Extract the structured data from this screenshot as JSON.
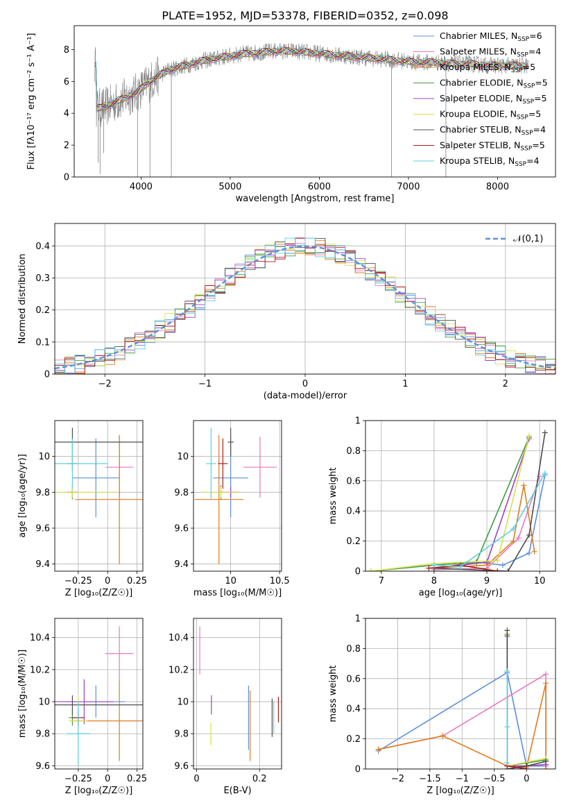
{
  "figure_title": "PLATE=1952, MJD=53378, FIBERID=0352, z=0.098",
  "colors": {
    "Chabrier MILES": "#5b8fd9",
    "Salpeter MILES": "#e879c0",
    "Kroupa MILES": "#e07b1a",
    "Chabrier ELODIE": "#3f9b3f",
    "Salpeter ELODIE": "#a13fbf",
    "Kroupa ELODIE": "#d6e04a",
    "Chabrier STELIB": "#4d4d4d",
    "Salpeter STELIB": "#b01818",
    "Kroupa STELIB": "#5ecfe0",
    "data": "#808080",
    "normal": "#5b8fd9"
  },
  "chart_data": [
    {
      "id": "spectrum",
      "type": "line",
      "xlabel": "wavelength [Angstrom, rest frame]",
      "ylabel": "Flux [fλ10⁻¹⁷ erg cm⁻² s⁻¹ A⁻¹]",
      "xlim": [
        3250,
        8650
      ],
      "ylim": [
        0,
        9.5
      ],
      "xticks": [
        4000,
        5000,
        6000,
        7000,
        8000
      ],
      "yticks": [
        0,
        2,
        4,
        6,
        8
      ],
      "grid": false,
      "legend_position": "right",
      "legend": [
        {
          "model": "Chabrier MILES",
          "label": "Chabrier MILES, N",
          "nssp": "6"
        },
        {
          "model": "Salpeter MILES",
          "label": "Salpeter MILES, N",
          "nssp": "4"
        },
        {
          "model": "Kroupa MILES",
          "label": "Kroupa MILES, N",
          "nssp": "5"
        },
        {
          "model": "Chabrier ELODIE",
          "label": "Chabrier ELODIE, N",
          "nssp": "5"
        },
        {
          "model": "Salpeter ELODIE",
          "label": "Salpeter ELODIE, N",
          "nssp": "5"
        },
        {
          "model": "Kroupa ELODIE",
          "label": "Kroupa ELODIE, N",
          "nssp": "5"
        },
        {
          "model": "Chabrier STELIB",
          "label": "Chabrier STELIB, N",
          "nssp": "4"
        },
        {
          "model": "Salpeter STELIB",
          "label": "Salpeter STELIB, N",
          "nssp": "5"
        },
        {
          "model": "Kroupa STELIB",
          "label": "Kroupa STELIB, N",
          "nssp": "4"
        }
      ],
      "subscript": "SSP",
      "continuum": [
        [
          3500,
          4.3
        ],
        [
          3600,
          4.4
        ],
        [
          3750,
          4.8
        ],
        [
          3950,
          5.3
        ],
        [
          4100,
          6.0
        ],
        [
          4300,
          6.7
        ],
        [
          4500,
          7.0
        ],
        [
          4700,
          7.3
        ],
        [
          4900,
          7.5
        ],
        [
          5100,
          7.7
        ],
        [
          5300,
          7.8
        ],
        [
          5500,
          7.9
        ],
        [
          5700,
          7.9
        ],
        [
          5900,
          7.8
        ],
        [
          6100,
          7.7
        ],
        [
          6300,
          7.6
        ],
        [
          6500,
          7.5
        ],
        [
          6700,
          7.4
        ],
        [
          6900,
          7.3
        ],
        [
          7100,
          7.2
        ],
        [
          7300,
          7.2
        ],
        [
          7500,
          7.1
        ],
        [
          7700,
          7.1
        ],
        [
          7900,
          7.0
        ],
        [
          8100,
          7.0
        ],
        [
          8350,
          7.0
        ]
      ],
      "spikes": [
        [
          3520,
          0.9
        ],
        [
          3540,
          0.2
        ],
        [
          3580,
          1.5
        ],
        [
          3960,
          0
        ],
        [
          4100,
          0
        ],
        [
          4340,
          0
        ],
        [
          6810,
          0
        ],
        [
          7420,
          0
        ]
      ]
    },
    {
      "id": "residuals",
      "type": "line",
      "xlabel": "(data-model)/error",
      "ylabel": "Normed distribution",
      "xlim": [
        -2.5,
        2.5
      ],
      "ylim": [
        0,
        0.47
      ],
      "xticks": [
        -2,
        -1,
        0,
        1,
        2
      ],
      "yticks": [
        0.0,
        0.1,
        0.2,
        0.3,
        0.4
      ],
      "grid": true,
      "legend_position": "top-right",
      "legend_label": "𝒩(0,1)",
      "bin_width": 0.1
    },
    {
      "id": "age_vs_Z",
      "type": "scatter",
      "xlabel": "Z [log₁₀(Z/Z☉)]",
      "ylabel": "age  [log₁₀(age/yr)]",
      "xlim": [
        -0.45,
        0.3
      ],
      "ylim": [
        9.36,
        10.2
      ],
      "xticks": [
        -0.25,
        0.0,
        0.25
      ],
      "yticks": [
        9.4,
        9.6,
        9.8,
        10.0
      ],
      "grid": true,
      "points": [
        {
          "model": "Chabrier MILES",
          "x": -0.1,
          "y": 9.88,
          "xerr": 0.2,
          "yerr": 0.22
        },
        {
          "model": "Salpeter MILES",
          "x": 0.1,
          "y": 9.94,
          "xerr": 0.12,
          "yerr": 0.17
        },
        {
          "model": "Kroupa MILES",
          "x": 0.1,
          "y": 9.76,
          "xerr": 0.38,
          "yerr": 0.36
        },
        {
          "model": "Chabrier ELODIE",
          "x": -0.3,
          "y": 9.8,
          "xerr": 0.03,
          "yerr": 0.04
        },
        {
          "model": "Salpeter ELODIE",
          "x": -0.3,
          "y": 9.8,
          "xerr": 0.05,
          "yerr": 0.03
        },
        {
          "model": "Kroupa ELODIE",
          "x": -0.3,
          "y": 9.8,
          "xerr": 0.38,
          "yerr": 0.03
        },
        {
          "model": "Chabrier STELIB",
          "x": -0.3,
          "y": 10.08,
          "xerr": 0.62,
          "yerr": 0.08
        },
        {
          "model": "Salpeter STELIB",
          "x": -0.3,
          "y": 9.96,
          "xerr": 0.04,
          "yerr": 0.04
        },
        {
          "model": "Kroupa STELIB",
          "x": -0.3,
          "y": 9.96,
          "xerr": 0.3,
          "yerr": 0.14
        }
      ]
    },
    {
      "id": "age_vs_mass",
      "type": "scatter",
      "xlabel": "mass [log₁₀(M/M☉)]",
      "ylabel": "",
      "xlim": [
        9.62,
        10.52
      ],
      "ylim": [
        9.36,
        10.2
      ],
      "xticks": [
        10.0,
        10.5
      ],
      "yticks": [
        9.4,
        9.6,
        9.8,
        10.0
      ],
      "grid": true,
      "points": [
        {
          "model": "Chabrier MILES",
          "x": 10.0,
          "y": 9.88,
          "xerr": 0.18,
          "yerr": 0.22
        },
        {
          "model": "Salpeter MILES",
          "x": 10.3,
          "y": 9.94,
          "xerr": 0.17,
          "yerr": 0.17
        },
        {
          "model": "Kroupa MILES",
          "x": 9.88,
          "y": 9.76,
          "xerr": 0.25,
          "yerr": 0.36
        },
        {
          "model": "Chabrier ELODIE",
          "x": 9.9,
          "y": 9.8,
          "xerr": 0.03,
          "yerr": 0.04
        },
        {
          "model": "Salpeter ELODIE",
          "x": 10.0,
          "y": 9.8,
          "xerr": 0.1,
          "yerr": 0.03
        },
        {
          "model": "Kroupa ELODIE",
          "x": 9.9,
          "y": 9.8,
          "xerr": 0.2,
          "yerr": 0.03
        },
        {
          "model": "Chabrier STELIB",
          "x": 10.0,
          "y": 10.08,
          "xerr": 0.03,
          "yerr": 0.08
        },
        {
          "model": "Salpeter STELIB",
          "x": 9.92,
          "y": 9.96,
          "xerr": 0.05,
          "yerr": 0.14
        },
        {
          "model": "Kroupa STELIB",
          "x": 9.8,
          "y": 9.96,
          "xerr": 0.05,
          "yerr": 0.2
        }
      ]
    },
    {
      "id": "weight_vs_age",
      "type": "line",
      "xlabel": "age  [log₁₀(age/yr)]",
      "ylabel": "mass weight",
      "xlim": [
        6.7,
        10.3
      ],
      "ylim": [
        0,
        1.0
      ],
      "xticks": [
        7,
        8,
        9,
        10
      ],
      "yticks": [
        0.0,
        0.2,
        0.4,
        0.6,
        0.8,
        1.0
      ],
      "grid": true,
      "series": [
        {
          "model": "Chabrier MILES",
          "points": [
            [
              8.0,
              0.02
            ],
            [
              8.8,
              0.06
            ],
            [
              9.3,
              0.04
            ],
            [
              9.8,
              0.12
            ],
            [
              10.1,
              0.64
            ]
          ]
        },
        {
          "model": "Salpeter MILES",
          "points": [
            [
              8.0,
              0.01
            ],
            [
              9.0,
              0.02
            ],
            [
              9.6,
              0.22
            ],
            [
              10.0,
              0.63
            ]
          ]
        },
        {
          "model": "Kroupa MILES",
          "points": [
            [
              8.0,
              0.02
            ],
            [
              9.0,
              0.04
            ],
            [
              9.5,
              0.2
            ],
            [
              9.7,
              0.57
            ],
            [
              9.9,
              0.13
            ]
          ]
        },
        {
          "model": "Chabrier ELODIE",
          "points": [
            [
              6.8,
              0.0
            ],
            [
              8.0,
              0.04
            ],
            [
              8.8,
              0.06
            ],
            [
              9.8,
              0.89
            ]
          ]
        },
        {
          "model": "Salpeter ELODIE",
          "points": [
            [
              8.0,
              0.02
            ],
            [
              9.0,
              0.06
            ],
            [
              9.8,
              0.88
            ]
          ]
        },
        {
          "model": "Kroupa ELODIE",
          "points": [
            [
              6.8,
              0.0
            ],
            [
              8.0,
              0.05
            ],
            [
              9.2,
              0.07
            ],
            [
              9.8,
              0.9
            ]
          ]
        },
        {
          "model": "Chabrier STELIB",
          "points": [
            [
              8.0,
              0.02
            ],
            [
              9.4,
              0.0
            ],
            [
              9.8,
              0.24
            ],
            [
              10.1,
              0.92
            ]
          ]
        },
        {
          "model": "Salpeter STELIB",
          "points": [
            [
              7.9,
              0.02
            ],
            [
              8.5,
              0.04
            ],
            [
              9.2,
              0.0
            ]
          ]
        },
        {
          "model": "Kroupa STELIB",
          "points": [
            [
              8.0,
              0.04
            ],
            [
              8.5,
              0.03
            ],
            [
              9.5,
              0.28
            ],
            [
              10.1,
              0.65
            ]
          ]
        }
      ]
    },
    {
      "id": "mass_vs_Z",
      "type": "scatter",
      "xlabel": "Z [log₁₀(Z/Z☉)]",
      "ylabel": "mass [log₁₀(M/M☉)]",
      "xlim": [
        -0.45,
        0.3
      ],
      "ylim": [
        9.58,
        10.52
      ],
      "xticks": [
        -0.25,
        0.0,
        0.25
      ],
      "yticks": [
        9.6,
        9.8,
        10.0,
        10.2,
        10.4
      ],
      "grid": true,
      "points": [
        {
          "model": "Chabrier MILES",
          "x": -0.1,
          "y": 10.0,
          "xerr": 0.25,
          "yerr": 0.1
        },
        {
          "model": "Salpeter MILES",
          "x": 0.1,
          "y": 10.3,
          "xerr": 0.12,
          "yerr": 0.17
        },
        {
          "model": "Kroupa MILES",
          "x": 0.1,
          "y": 9.88,
          "xerr": 0.4,
          "yerr": 0.25
        },
        {
          "model": "Chabrier ELODIE",
          "x": -0.3,
          "y": 9.9,
          "xerr": 0.03,
          "yerr": 0.05
        },
        {
          "model": "Salpeter ELODIE",
          "x": -0.2,
          "y": 10.0,
          "xerr": 0.25,
          "yerr": 0.14
        },
        {
          "model": "Kroupa ELODIE",
          "x": -0.25,
          "y": 9.88,
          "xerr": 0.08,
          "yerr": 0.15
        },
        {
          "model": "Chabrier STELIB",
          "x": -0.3,
          "y": 9.98,
          "xerr": 0.6,
          "yerr": 0.06
        },
        {
          "model": "Salpeter STELIB",
          "x": -0.25,
          "y": 9.9,
          "xerr": 0.05,
          "yerr": 0.05
        },
        {
          "model": "Kroupa STELIB",
          "x": -0.25,
          "y": 9.8,
          "xerr": 0.1,
          "yerr": 0.2
        }
      ]
    },
    {
      "id": "mass_vs_ebv",
      "type": "scatter",
      "xlabel": "E(B-V)",
      "ylabel": "",
      "xlim": [
        -0.01,
        0.27
      ],
      "ylim": [
        9.58,
        10.52
      ],
      "xticks": [
        0.0,
        0.2
      ],
      "yticks": [
        9.6,
        9.8,
        10.0,
        10.2,
        10.4
      ],
      "grid": true,
      "points": [
        {
          "model": "Salpeter MILES",
          "x": 0.01,
          "y": 10.32,
          "xerr": 0.0,
          "yerr": 0.15
        },
        {
          "model": "Kroupa ELODIE",
          "x": 0.045,
          "y": 9.8,
          "xerr": 0.0,
          "yerr": 0.07
        },
        {
          "model": "Salpeter ELODIE",
          "x": 0.047,
          "y": 9.98,
          "xerr": 0.0,
          "yerr": 0.06
        },
        {
          "model": "Chabrier MILES",
          "x": 0.165,
          "y": 9.9,
          "xerr": 0.0,
          "yerr": 0.2
        },
        {
          "model": "Kroupa MILES",
          "x": 0.17,
          "y": 9.85,
          "xerr": 0.0,
          "yerr": 0.22
        },
        {
          "model": "Chabrier STELIB",
          "x": 0.24,
          "y": 9.9,
          "xerr": 0.0,
          "yerr": 0.12
        },
        {
          "model": "Kroupa STELIB",
          "x": 0.245,
          "y": 9.9,
          "xerr": 0.0,
          "yerr": 0.1
        },
        {
          "model": "Salpeter STELIB",
          "x": 0.26,
          "y": 9.95,
          "xerr": 0.0,
          "yerr": 0.08
        }
      ]
    },
    {
      "id": "weight_vs_Z",
      "type": "line",
      "xlabel": "Z [log₁₀(Z/Z☉)]",
      "ylabel": "mass weight",
      "xlim": [
        -2.5,
        0.45
      ],
      "ylim": [
        0,
        1.0
      ],
      "xticks": [
        -2.0,
        -1.5,
        -1.0,
        -0.5,
        0.0
      ],
      "yticks": [
        0.0,
        0.2,
        0.4,
        0.6,
        0.8,
        1.0
      ],
      "grid": true,
      "series": [
        {
          "model": "Chabrier MILES",
          "points": [
            [
              -2.3,
              0.12
            ],
            [
              -0.3,
              0.64
            ],
            [
              0.0,
              0.02
            ],
            [
              0.3,
              0.02
            ]
          ]
        },
        {
          "model": "Salpeter MILES",
          "points": [
            [
              -2.3,
              0.13
            ],
            [
              -1.3,
              0.22
            ],
            [
              0.3,
              0.63
            ],
            [
              0.3,
              0.02
            ]
          ]
        },
        {
          "model": "Kroupa MILES",
          "points": [
            [
              -2.3,
              0.13
            ],
            [
              -1.3,
              0.22
            ],
            [
              -0.3,
              0.02
            ],
            [
              0.0,
              0.01
            ],
            [
              0.3,
              0.57
            ],
            [
              0.3,
              0.0
            ]
          ]
        },
        {
          "model": "Chabrier ELODIE",
          "points": [
            [
              -0.3,
              0.89
            ],
            [
              -0.3,
              0.02
            ],
            [
              0.3,
              0.06
            ]
          ]
        },
        {
          "model": "Salpeter ELODIE",
          "points": [
            [
              -0.3,
              0.88
            ],
            [
              -0.3,
              0.02
            ],
            [
              0.0,
              0.02
            ],
            [
              0.3,
              0.03
            ]
          ]
        },
        {
          "model": "Kroupa ELODIE",
          "points": [
            [
              -0.3,
              0.9
            ],
            [
              -0.3,
              0.02
            ],
            [
              0.3,
              0.07
            ]
          ]
        },
        {
          "model": "Chabrier STELIB",
          "points": [
            [
              -0.3,
              0.92
            ],
            [
              -0.3,
              0.0
            ],
            [
              0.0,
              0.02
            ],
            [
              0.3,
              0.05
            ]
          ]
        },
        {
          "model": "Salpeter STELIB",
          "points": [
            [
              -0.3,
              0.02
            ],
            [
              0.0,
              0.0
            ]
          ]
        },
        {
          "model": "Kroupa STELIB",
          "points": [
            [
              -0.3,
              0.65
            ],
            [
              -0.3,
              0.28
            ],
            [
              -0.3,
              0.04
            ]
          ]
        }
      ]
    }
  ]
}
